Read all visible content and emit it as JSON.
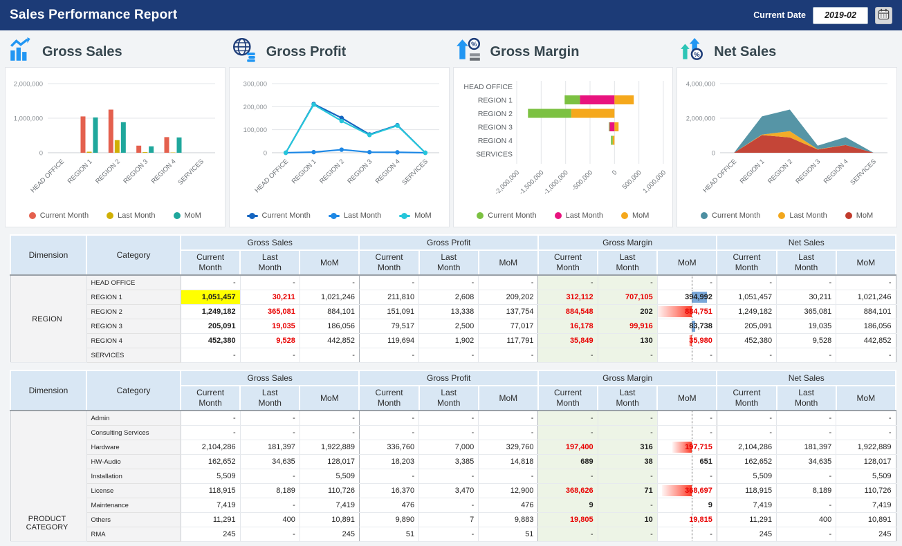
{
  "header": {
    "title": "Sales Performance Report",
    "current_date_label": "Current Date",
    "date_value": "2019-02"
  },
  "colors": {
    "navy": "#1c3b77",
    "header_cell_bg": "#d9e7f4",
    "gross_margin_bg": "#edf4e6",
    "highlight_yellow": "#ffff00",
    "negative_red_text": "#e80000",
    "databar_blue": "#79a7d9",
    "databar_red": "#fb3b28"
  },
  "panels": [
    {
      "title": "Gross Sales",
      "icon": "bar-chart-icon",
      "marker": "dot",
      "chart_data": {
        "type": "bar",
        "categories": [
          "HEAD OFFICE",
          "REGION 1",
          "REGION 2",
          "REGION 3",
          "REGION 4",
          "SERVICES"
        ],
        "series": [
          {
            "name": "Current Month",
            "color": "#e4604e",
            "values": [
              0,
              1051457,
              1249182,
              205091,
              452380,
              0
            ]
          },
          {
            "name": "Last Month",
            "color": "#d0b005",
            "values": [
              0,
              30211,
              365081,
              19035,
              9528,
              0
            ]
          },
          {
            "name": "MoM",
            "color": "#1fa79c",
            "values": [
              0,
              1021246,
              884101,
              186056,
              442852,
              0
            ]
          }
        ],
        "ylim": [
          0,
          2000000
        ],
        "yticks": [
          0,
          1000000,
          2000000
        ],
        "grid": true,
        "legend_position": "bottom"
      }
    },
    {
      "title": "Gross Profit",
      "icon": "globe-icon",
      "marker": "line-dot",
      "chart_data": {
        "type": "line",
        "categories": [
          "HEAD OFFICE",
          "REGION 1",
          "REGION 2",
          "REGION 3",
          "REGION 4",
          "SERVICES"
        ],
        "series": [
          {
            "name": "Current Month",
            "color": "#1565c0",
            "values": [
              0,
              211810,
              151091,
              79517,
              119694,
              0
            ]
          },
          {
            "name": "Last Month",
            "color": "#1e88e5",
            "values": [
              0,
              2608,
              13338,
              2500,
              1902,
              0
            ]
          },
          {
            "name": "MoM",
            "color": "#26c6da",
            "values": [
              0,
              209202,
              137754,
              77017,
              117791,
              0
            ]
          }
        ],
        "ylim": [
          0,
          300000
        ],
        "yticks": [
          0,
          100000,
          200000,
          300000
        ],
        "grid": true,
        "legend_position": "bottom"
      }
    },
    {
      "title": "Gross Margin",
      "icon": "arrow-up-percent-icon",
      "marker": "dot",
      "chart_data": {
        "type": "hbar",
        "categories": [
          "HEAD OFFICE",
          "REGION 1",
          "REGION 2",
          "REGION 3",
          "REGION 4",
          "SERVICES"
        ],
        "series": [
          {
            "name": "Current Month",
            "color": "#7cc142",
            "values": [
              0,
              -312112,
              -884548,
              -16178,
              -35849,
              0
            ]
          },
          {
            "name": "Last Month",
            "color": "#e8137e",
            "values": [
              0,
              -707105,
              -202,
              -99916,
              -130,
              0
            ]
          },
          {
            "name": "MoM",
            "color": "#f5a81c",
            "values": [
              0,
              394992,
              -884751,
              83738,
              -35980,
              0
            ]
          }
        ],
        "xlim": [
          -2000000,
          1000000
        ],
        "xticks": [
          -2000000,
          -1500000,
          -1000000,
          -500000,
          0,
          500000,
          1000000
        ],
        "stacked": true,
        "grid": true,
        "legend_position": "bottom"
      }
    },
    {
      "title": "Net Sales",
      "icon": "double-arrow-percent-icon",
      "marker": "dot",
      "chart_data": {
        "type": "area",
        "categories": [
          "HEAD OFFICE",
          "REGION 1",
          "REGION 2",
          "REGION 3",
          "REGION 4",
          "SERVICES"
        ],
        "series": [
          {
            "name": "Current Month",
            "color": "#4d8fa1",
            "values": [
              0,
              1051457,
              1249182,
              205091,
              452380,
              0
            ]
          },
          {
            "name": "Last Month",
            "color": "#f2a71c",
            "values": [
              0,
              30211,
              365081,
              19035,
              9528,
              0
            ]
          },
          {
            "name": "MoM",
            "color": "#c13b2c",
            "values": [
              0,
              1021246,
              884101,
              186056,
              442852,
              0
            ]
          }
        ],
        "stacked": true,
        "stack_order": [
          "MoM",
          "Last Month",
          "Current Month"
        ],
        "ylim": [
          0,
          4000000
        ],
        "yticks": [
          0,
          2000000,
          4000000
        ],
        "grid": true,
        "legend_position": "bottom"
      }
    }
  ],
  "tables": [
    {
      "dimension_label": "Dimension",
      "category_label": "Category",
      "dimension_value": "REGION",
      "dim_valign": "middle",
      "gm_axis_pct": 58,
      "col_groups": [
        "Gross Sales",
        "Gross Profit",
        "Gross Margin",
        "Net Sales"
      ],
      "sub_cols": [
        "Current Month",
        "Last Month",
        "MoM"
      ],
      "rows": [
        {
          "category": "HEAD OFFICE",
          "cells": [
            {
              "t": "-"
            },
            {
              "t": "-"
            },
            {
              "t": "-"
            },
            {
              "t": "-"
            },
            {
              "t": "-"
            },
            {
              "t": "-"
            },
            {
              "t": "-"
            },
            {
              "t": "-"
            },
            {
              "t": "-"
            },
            {
              "t": "-"
            },
            {
              "t": "-"
            },
            {
              "t": "-"
            }
          ]
        },
        {
          "category": "REGION 1",
          "cells": [
            {
              "t": "1,051,457",
              "b": 1,
              "bg": "yellow"
            },
            {
              "t": "30,211",
              "c": "red",
              "b": 1
            },
            {
              "t": "1,021,246"
            },
            {
              "t": "211,810"
            },
            {
              "t": "2,608"
            },
            {
              "t": "209,202"
            },
            {
              "t": "312,112",
              "c": "red",
              "b": 1
            },
            {
              "t": "707,105",
              "c": "red",
              "b": 1
            },
            {
              "t": "394,992",
              "b": 1,
              "bar": {
                "side": "right",
                "color": "blue",
                "w": 22
              }
            },
            {
              "t": "1,051,457"
            },
            {
              "t": "30,211"
            },
            {
              "t": "1,021,246"
            }
          ]
        },
        {
          "category": "REGION 2",
          "cells": [
            {
              "t": "1,249,182",
              "b": 1
            },
            {
              "t": "365,081",
              "c": "red",
              "b": 1
            },
            {
              "t": "884,101"
            },
            {
              "t": "151,091"
            },
            {
              "t": "13,338"
            },
            {
              "t": "137,754"
            },
            {
              "t": "884,548",
              "c": "red",
              "b": 1
            },
            {
              "t": "202",
              "b": 1
            },
            {
              "t": "884,751",
              "c": "red",
              "b": 1,
              "bar": {
                "side": "left",
                "color": "red",
                "w": 50
              }
            },
            {
              "t": "1,249,182"
            },
            {
              "t": "365,081"
            },
            {
              "t": "884,101"
            }
          ]
        },
        {
          "category": "REGION 3",
          "cells": [
            {
              "t": "205,091",
              "b": 1
            },
            {
              "t": "19,035",
              "c": "red",
              "b": 1
            },
            {
              "t": "186,056"
            },
            {
              "t": "79,517"
            },
            {
              "t": "2,500"
            },
            {
              "t": "77,017"
            },
            {
              "t": "16,178",
              "c": "red",
              "b": 1
            },
            {
              "t": "99,916",
              "c": "red",
              "b": 1
            },
            {
              "t": "83,738",
              "b": 1,
              "bar": {
                "side": "right",
                "color": "blue",
                "w": 5
              }
            },
            {
              "t": "205,091"
            },
            {
              "t": "19,035"
            },
            {
              "t": "186,056"
            }
          ]
        },
        {
          "category": "REGION 4",
          "cells": [
            {
              "t": "452,380",
              "b": 1
            },
            {
              "t": "9,528",
              "c": "red",
              "b": 1
            },
            {
              "t": "442,852"
            },
            {
              "t": "119,694"
            },
            {
              "t": "1,902"
            },
            {
              "t": "117,791"
            },
            {
              "t": "35,849",
              "c": "red",
              "b": 1
            },
            {
              "t": "130",
              "b": 1
            },
            {
              "t": "35,980",
              "c": "red",
              "b": 1,
              "bar": {
                "side": "left",
                "color": "red",
                "w": 4
              }
            },
            {
              "t": "452,380"
            },
            {
              "t": "9,528"
            },
            {
              "t": "442,852"
            }
          ]
        },
        {
          "category": "SERVICES",
          "cells": [
            {
              "t": "-"
            },
            {
              "t": "-"
            },
            {
              "t": "-"
            },
            {
              "t": "-"
            },
            {
              "t": "-"
            },
            {
              "t": "-"
            },
            {
              "t": "-"
            },
            {
              "t": "-"
            },
            {
              "t": "-"
            },
            {
              "t": "-"
            },
            {
              "t": "-"
            },
            {
              "t": "-"
            }
          ]
        }
      ]
    },
    {
      "dimension_label": "Dimension",
      "category_label": "Category",
      "dimension_value": "PRODUCT CATEGORY",
      "dim_valign": "bottom",
      "gm_axis_pct": 58,
      "col_groups": [
        "Gross Sales",
        "Gross Profit",
        "Gross Margin",
        "Net Sales"
      ],
      "sub_cols": [
        "Current Month",
        "Last Month",
        "MoM"
      ],
      "rows": [
        {
          "category": "Admin",
          "cells": [
            {
              "t": "-"
            },
            {
              "t": "-"
            },
            {
              "t": "-"
            },
            {
              "t": "-"
            },
            {
              "t": "-"
            },
            {
              "t": "-"
            },
            {
              "t": "-"
            },
            {
              "t": "-"
            },
            {
              "t": "-"
            },
            {
              "t": "-"
            },
            {
              "t": "-"
            },
            {
              "t": "-"
            }
          ]
        },
        {
          "category": "Consulting Services",
          "cells": [
            {
              "t": "-"
            },
            {
              "t": "-"
            },
            {
              "t": "-"
            },
            {
              "t": "-"
            },
            {
              "t": "-"
            },
            {
              "t": "-"
            },
            {
              "t": "-"
            },
            {
              "t": "-"
            },
            {
              "t": "-"
            },
            {
              "t": "-"
            },
            {
              "t": "-"
            },
            {
              "t": "-"
            }
          ]
        },
        {
          "category": "Hardware",
          "cells": [
            {
              "t": "2,104,286"
            },
            {
              "t": "181,397"
            },
            {
              "t": "1,922,889"
            },
            {
              "t": "336,760"
            },
            {
              "t": "7,000"
            },
            {
              "t": "329,760"
            },
            {
              "t": "197,400",
              "c": "red",
              "b": 1
            },
            {
              "t": "316",
              "b": 1
            },
            {
              "t": "197,715",
              "c": "red",
              "b": 1,
              "bar": {
                "side": "left",
                "color": "red",
                "w": 28
              }
            },
            {
              "t": "2,104,286"
            },
            {
              "t": "181,397"
            },
            {
              "t": "1,922,889"
            }
          ]
        },
        {
          "category": "HW-Audio",
          "cells": [
            {
              "t": "162,652"
            },
            {
              "t": "34,635"
            },
            {
              "t": "128,017"
            },
            {
              "t": "18,203"
            },
            {
              "t": "3,385"
            },
            {
              "t": "14,818"
            },
            {
              "t": "689",
              "b": 1
            },
            {
              "t": "38",
              "b": 1
            },
            {
              "t": "651",
              "b": 1
            },
            {
              "t": "162,652"
            },
            {
              "t": "34,635"
            },
            {
              "t": "128,017"
            }
          ]
        },
        {
          "category": "Installation",
          "cells": [
            {
              "t": "5,509"
            },
            {
              "t": "-"
            },
            {
              "t": "5,509"
            },
            {
              "t": "-"
            },
            {
              "t": "-"
            },
            {
              "t": "-"
            },
            {
              "t": "-"
            },
            {
              "t": "-"
            },
            {
              "t": "-"
            },
            {
              "t": "5,509"
            },
            {
              "t": "-"
            },
            {
              "t": "5,509"
            }
          ]
        },
        {
          "category": "License",
          "cells": [
            {
              "t": "118,915"
            },
            {
              "t": "8,189"
            },
            {
              "t": "110,726"
            },
            {
              "t": "16,370"
            },
            {
              "t": "3,470"
            },
            {
              "t": "12,900"
            },
            {
              "t": "368,626",
              "c": "red",
              "b": 1
            },
            {
              "t": "71",
              "b": 1
            },
            {
              "t": "368,697",
              "c": "red",
              "b": 1,
              "bar": {
                "side": "left",
                "color": "red",
                "w": 43
              }
            },
            {
              "t": "118,915"
            },
            {
              "t": "8,189"
            },
            {
              "t": "110,726"
            }
          ]
        },
        {
          "category": "Maintenance",
          "cells": [
            {
              "t": "7,419"
            },
            {
              "t": "-"
            },
            {
              "t": "7,419"
            },
            {
              "t": "476"
            },
            {
              "t": "-"
            },
            {
              "t": "476"
            },
            {
              "t": "9",
              "b": 1
            },
            {
              "t": "-"
            },
            {
              "t": "9",
              "b": 1
            },
            {
              "t": "7,419"
            },
            {
              "t": "-"
            },
            {
              "t": "7,419"
            }
          ]
        },
        {
          "category": "Others",
          "cells": [
            {
              "t": "11,291"
            },
            {
              "t": "400"
            },
            {
              "t": "10,891"
            },
            {
              "t": "9,890"
            },
            {
              "t": "7"
            },
            {
              "t": "9,883"
            },
            {
              "t": "19,805",
              "c": "red",
              "b": 1
            },
            {
              "t": "10",
              "b": 1
            },
            {
              "t": "19,815",
              "c": "red",
              "b": 1
            },
            {
              "t": "11,291"
            },
            {
              "t": "400"
            },
            {
              "t": "10,891"
            }
          ]
        },
        {
          "category": "RMA",
          "cells": [
            {
              "t": "245"
            },
            {
              "t": "-"
            },
            {
              "t": "245"
            },
            {
              "t": "51"
            },
            {
              "t": "-"
            },
            {
              "t": "51"
            },
            {
              "t": "-"
            },
            {
              "t": "-"
            },
            {
              "t": "-"
            },
            {
              "t": "245"
            },
            {
              "t": "-"
            },
            {
              "t": "245"
            }
          ]
        }
      ]
    }
  ]
}
